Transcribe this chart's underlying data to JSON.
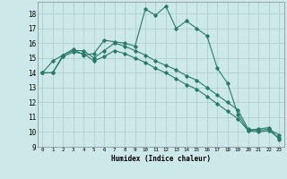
{
  "xlabel": "Humidex (Indice chaleur)",
  "bg_color": "#cce8e8",
  "grid_color": "#aacccc",
  "line_color": "#2a7a6a",
  "xlim": [
    -0.5,
    23.5
  ],
  "ylim": [
    9,
    18.8
  ],
  "yticks": [
    9,
    10,
    11,
    12,
    13,
    14,
    15,
    16,
    17,
    18
  ],
  "xticks": [
    0,
    1,
    2,
    3,
    4,
    5,
    6,
    7,
    8,
    9,
    10,
    11,
    12,
    13,
    14,
    15,
    16,
    17,
    18,
    19,
    20,
    21,
    22,
    23
  ],
  "series1_x": [
    0,
    1,
    2,
    3,
    4,
    5,
    6,
    7,
    8,
    9,
    10,
    11,
    12,
    13,
    14,
    15,
    16,
    17,
    18,
    19,
    20,
    21,
    22,
    23
  ],
  "series1_y": [
    14.0,
    14.8,
    15.2,
    15.6,
    15.2,
    15.3,
    16.2,
    16.1,
    16.0,
    15.8,
    18.3,
    17.9,
    18.5,
    17.0,
    17.5,
    17.0,
    16.5,
    14.3,
    13.3,
    11.2,
    10.1,
    10.2,
    10.3,
    9.5
  ],
  "series2_x": [
    0,
    1,
    2,
    3,
    4,
    5,
    6,
    7,
    8,
    9,
    10,
    11,
    12,
    13,
    14,
    15,
    16,
    17,
    18,
    19,
    20,
    21,
    22,
    23
  ],
  "series2_y": [
    14.0,
    14.0,
    15.2,
    15.5,
    15.5,
    15.0,
    15.5,
    16.0,
    15.8,
    15.5,
    15.2,
    14.8,
    14.5,
    14.2,
    13.8,
    13.5,
    13.0,
    12.5,
    12.0,
    11.5,
    10.2,
    10.1,
    10.2,
    9.8
  ],
  "series3_x": [
    0,
    1,
    2,
    3,
    4,
    5,
    6,
    7,
    8,
    9,
    10,
    11,
    12,
    13,
    14,
    15,
    16,
    17,
    18,
    19,
    20,
    21,
    22,
    23
  ],
  "series3_y": [
    14.0,
    14.0,
    15.1,
    15.4,
    15.3,
    14.8,
    15.1,
    15.5,
    15.3,
    15.0,
    14.7,
    14.3,
    14.0,
    13.6,
    13.2,
    12.9,
    12.4,
    11.9,
    11.4,
    10.9,
    10.1,
    10.0,
    10.1,
    9.6
  ]
}
